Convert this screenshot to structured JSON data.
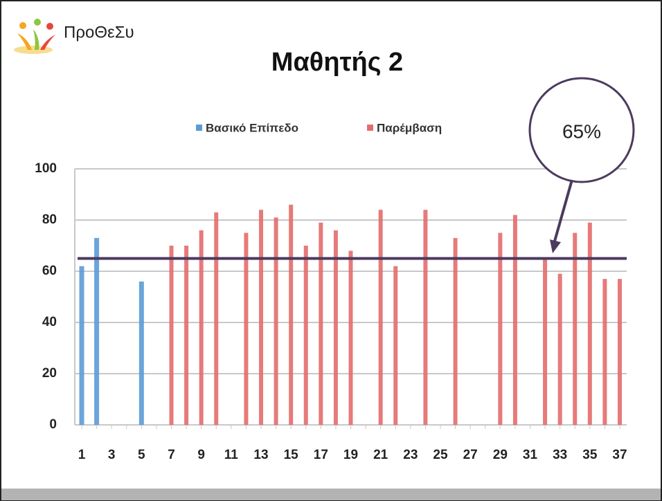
{
  "logo_text": "ΠροΘεΣυ",
  "chart_data": {
    "type": "bar",
    "title": "Μαθητής 2",
    "categories": [
      1,
      null,
      3,
      null,
      5,
      null,
      7,
      null,
      9,
      null,
      11,
      null,
      13,
      null,
      15,
      null,
      17,
      null,
      19,
      null,
      21,
      null,
      23,
      null,
      25,
      null,
      27,
      null,
      29,
      null,
      31,
      null,
      33,
      null,
      35,
      null,
      37
    ],
    "series": [
      {
        "name": "Βασικό Επίπεδο",
        "color": "#5b9bd5",
        "values": [
          62,
          73,
          null,
          null,
          56,
          null,
          null,
          null,
          null,
          null,
          null,
          null,
          null,
          null,
          null,
          null,
          null,
          null,
          null,
          null,
          null,
          null,
          null,
          null,
          null,
          null,
          null,
          null,
          null,
          null,
          null,
          null,
          null,
          null,
          null,
          null,
          null
        ]
      },
      {
        "name": "Παρέμβαση",
        "color": "#e46c6c",
        "values": [
          null,
          null,
          null,
          null,
          null,
          null,
          70,
          70,
          76,
          83,
          null,
          75,
          84,
          81,
          86,
          70,
          79,
          76,
          68,
          null,
          84,
          62,
          null,
          84,
          null,
          73,
          null,
          null,
          75,
          82,
          null,
          65,
          59,
          75,
          79,
          57,
          57
        ]
      }
    ],
    "ylim": [
      0,
      100
    ],
    "yticks": [
      0,
      20,
      40,
      60,
      80,
      100
    ],
    "grid": true,
    "legend": "top",
    "threshold": {
      "value": 65,
      "label": "65%",
      "color": "#4b3a5e"
    }
  }
}
